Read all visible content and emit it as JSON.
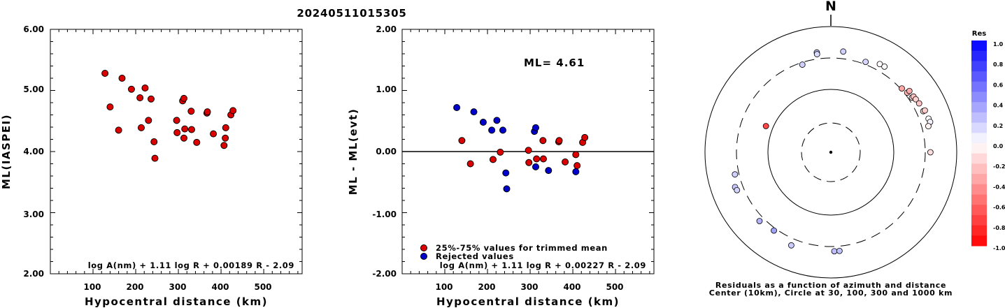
{
  "figure": {
    "title": "20240511015305"
  },
  "chart_data": [
    {
      "type": "scatter",
      "xlabel": "Hypocentral distance (km)",
      "ylabel": "ML(IASPEI)",
      "xlim": [
        0,
        590
      ],
      "ylim": [
        2.0,
        6.0
      ],
      "xticks": [
        "100",
        "200",
        "300",
        "400",
        "500"
      ],
      "yticks": [
        "2.00",
        "3.00",
        "4.00",
        "5.00",
        "6.00"
      ],
      "formula": "log A(nm) + 1.11 log R + 0.00189 R - 2.09",
      "points": [
        {
          "x": 128,
          "y": 5.28
        },
        {
          "x": 140,
          "y": 4.73
        },
        {
          "x": 160,
          "y": 4.35
        },
        {
          "x": 168,
          "y": 5.2
        },
        {
          "x": 190,
          "y": 5.02
        },
        {
          "x": 210,
          "y": 4.88
        },
        {
          "x": 213,
          "y": 4.39
        },
        {
          "x": 222,
          "y": 5.04
        },
        {
          "x": 230,
          "y": 4.51
        },
        {
          "x": 236,
          "y": 4.86
        },
        {
          "x": 243,
          "y": 4.16
        },
        {
          "x": 245,
          "y": 3.89
        },
        {
          "x": 296,
          "y": 4.51
        },
        {
          "x": 297,
          "y": 4.31
        },
        {
          "x": 310,
          "y": 4.83
        },
        {
          "x": 313,
          "y": 4.87
        },
        {
          "x": 313,
          "y": 4.22
        },
        {
          "x": 315,
          "y": 4.37
        },
        {
          "x": 330,
          "y": 4.66
        },
        {
          "x": 331,
          "y": 4.36
        },
        {
          "x": 343,
          "y": 4.15
        },
        {
          "x": 367,
          "y": 4.63
        },
        {
          "x": 368,
          "y": 4.65
        },
        {
          "x": 382,
          "y": 4.29
        },
        {
          "x": 407,
          "y": 4.1
        },
        {
          "x": 410,
          "y": 4.22
        },
        {
          "x": 411,
          "y": 4.39
        },
        {
          "x": 423,
          "y": 4.6
        },
        {
          "x": 428,
          "y": 4.67
        }
      ]
    },
    {
      "type": "scatter",
      "xlabel": "Hypocentral distance (km)",
      "ylabel": "ML - ML(evt)",
      "xlim": [
        0,
        590
      ],
      "ylim": [
        -2.0,
        2.0
      ],
      "xticks": [
        "100",
        "200",
        "300",
        "400",
        "500"
      ],
      "yticks": [
        "-2.00",
        "-1.00",
        "0.00",
        "1.00",
        "2.00"
      ],
      "ml_text": "ML=  4.61",
      "formula": "log A(nm) + 1.11 log R + 0.00227 R - 2.09",
      "legend": [
        {
          "label": "25%-75% values for trimmed mean",
          "color": "#dd0000"
        },
        {
          "label": "Rejected values",
          "color": "#0000cc"
        }
      ],
      "series": [
        {
          "name": "25%-75% values for trimmed mean",
          "color": "#dd0000",
          "points": [
            {
              "x": 140,
              "y": 0.18
            },
            {
              "x": 160,
              "y": -0.2
            },
            {
              "x": 213,
              "y": -0.13
            },
            {
              "x": 230,
              "y": -0.01
            },
            {
              "x": 296,
              "y": 0.02
            },
            {
              "x": 297,
              "y": -0.18
            },
            {
              "x": 315,
              "y": -0.12
            },
            {
              "x": 330,
              "y": 0.18
            },
            {
              "x": 331,
              "y": -0.12
            },
            {
              "x": 367,
              "y": 0.16
            },
            {
              "x": 368,
              "y": 0.18
            },
            {
              "x": 382,
              "y": -0.17
            },
            {
              "x": 407,
              "y": -0.05
            },
            {
              "x": 410,
              "y": -0.23
            },
            {
              "x": 423,
              "y": 0.15
            },
            {
              "x": 428,
              "y": 0.23
            }
          ]
        },
        {
          "name": "Rejected values",
          "color": "#0000cc",
          "points": [
            {
              "x": 128,
              "y": 0.72
            },
            {
              "x": 168,
              "y": 0.65
            },
            {
              "x": 190,
              "y": 0.48
            },
            {
              "x": 210,
              "y": 0.35
            },
            {
              "x": 222,
              "y": 0.51
            },
            {
              "x": 236,
              "y": 0.35
            },
            {
              "x": 243,
              "y": -0.35
            },
            {
              "x": 245,
              "y": -0.61
            },
            {
              "x": 310,
              "y": 0.33
            },
            {
              "x": 313,
              "y": 0.39
            },
            {
              "x": 313,
              "y": -0.25
            },
            {
              "x": 343,
              "y": -0.31
            },
            {
              "x": 407,
              "y": -0.33
            }
          ]
        }
      ]
    },
    {
      "type": "polar-scatter",
      "north_label": "N",
      "caption_line1": "Residuals as a function of azimuth and distance",
      "caption_line2": "Center (10km), Circle at 30, 100, 300 and 1000 km",
      "colorbar": {
        "title": "Res",
        "ticks": [
          "1.0",
          "0.8",
          "0.6",
          "0.4",
          "0.2",
          "0.0",
          "-0.2",
          "-0.4",
          "-0.6",
          "-0.8",
          "-1.0"
        ]
      },
      "points": [
        {
          "az": 342,
          "dist": 278,
          "res": 0.18
        },
        {
          "az": 352,
          "dist": 385,
          "res": 0.23
        },
        {
          "az": 352,
          "dist": 360,
          "res": 0.15
        },
        {
          "az": 7,
          "dist": 395,
          "res": 0.18
        },
        {
          "az": 21,
          "dist": 330,
          "res": 0.16
        },
        {
          "az": 29,
          "dist": 385,
          "res": -0.01
        },
        {
          "az": 32,
          "dist": 388,
          "res": 0.02
        },
        {
          "az": 48,
          "dist": 313,
          "res": -0.35
        },
        {
          "az": 52,
          "dist": 330,
          "res": -0.31
        },
        {
          "az": 52,
          "dist": 367,
          "res": -0.33
        },
        {
          "az": 56,
          "dist": 343,
          "res": -0.12
        },
        {
          "az": 56,
          "dist": 367,
          "res": -0.25
        },
        {
          "az": 58,
          "dist": 373,
          "res": -0.18
        },
        {
          "az": 61,
          "dist": 385,
          "res": -0.23
        },
        {
          "az": 66,
          "dist": 388,
          "res": -0.13
        },
        {
          "az": 66,
          "dist": 415,
          "res": -0.2
        },
        {
          "az": 71,
          "dist": 422,
          "res": 0.01
        },
        {
          "az": 73,
          "dist": 430,
          "res": 0.05
        },
        {
          "az": 75,
          "dist": 385,
          "res": -0.05
        },
        {
          "az": 90,
          "dist": 365,
          "res": -0.13
        },
        {
          "az": 292,
          "dist": 128,
          "res": -0.72
        },
        {
          "az": 257,
          "dist": 350,
          "res": 0.18
        },
        {
          "az": 250,
          "dist": 400,
          "res": 0.22
        },
        {
          "az": 248,
          "dist": 390,
          "res": 0.17
        },
        {
          "az": 226,
          "dist": 360,
          "res": 0.3
        },
        {
          "az": 216,
          "dist": 330,
          "res": 0.37
        },
        {
          "az": 203,
          "dist": 390,
          "res": 0.2
        },
        {
          "az": 178,
          "dist": 360,
          "res": 0.26
        },
        {
          "az": 175,
          "dist": 360,
          "res": 0.24
        }
      ]
    }
  ]
}
